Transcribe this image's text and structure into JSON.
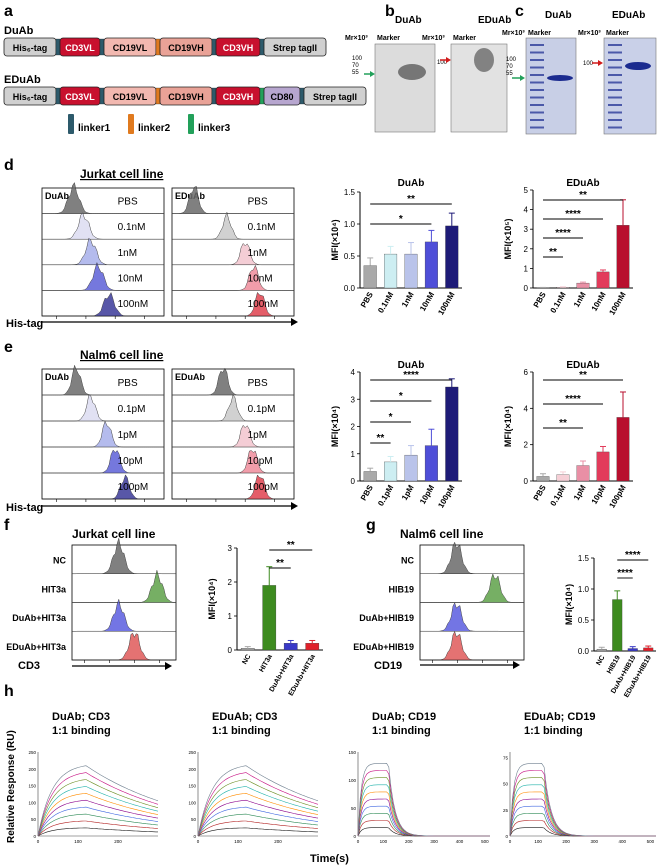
{
  "panels": {
    "a": "a",
    "b": "b",
    "c": "c",
    "d": "d",
    "e": "e",
    "f": "f",
    "g": "g",
    "h": "h"
  },
  "panel_a": {
    "duab_title": "DuAb",
    "eduab_title": "EDuAb",
    "duab_domains": [
      "His6-tag",
      "CD3VL",
      "CD19VL",
      "CD19VH",
      "CD3VH",
      "Strep tagII"
    ],
    "eduab_domains": [
      "His6-tag",
      "CD3VL",
      "CD19VL",
      "CD19VH",
      "CD3VH",
      "CD80",
      "Strep tagII"
    ],
    "linkers": [
      "linker1",
      "linker2",
      "linker3"
    ],
    "colors": {
      "grey": "#d0d0d0",
      "cd3": "#c8102e",
      "cd19vl": "#f2b8b0",
      "cd19vh": "#e9a297",
      "cd80": "#b7a6cf",
      "linker1": "#2d5a6b",
      "linker2": "#e07a1f",
      "linker3": "#22a05a"
    }
  },
  "panel_b": {
    "duab": "DuAb",
    "eduab": "EDuAb",
    "mr": "Mr×10³",
    "marker": "Marker",
    "ticks": [
      "100",
      "70",
      "55"
    ],
    "arrow_left": "55",
    "arrow_right": "100"
  },
  "panel_c": {
    "duab": "DuAb",
    "eduab": "EDuAb",
    "mr": "Mr×10³",
    "marker": "Marker",
    "ticks": [
      "100",
      "70",
      "55"
    ],
    "arrow_left": "55",
    "arrow_right": "100"
  },
  "panel_d": {
    "title": "Jurkat cell line",
    "duab_label": "DuAb",
    "eduab_label": "EDuAb",
    "duab_traces": [
      "PBS",
      "0.1nM",
      "1nM",
      "10nM",
      "100nM"
    ],
    "eduab_traces": [
      "PBS",
      "0.1nM",
      "1nM",
      "10nM",
      "100nM"
    ],
    "xaxis": "His-tag"
  },
  "panel_e": {
    "title": "Nalm6 cell line",
    "duab_label": "DuAb",
    "eduab_label": "EDuAb",
    "duab_traces": [
      "PBS",
      "0.1pM",
      "1pM",
      "10pM",
      "100pM"
    ],
    "eduab_traces": [
      "PBS",
      "0.1pM",
      "1pM",
      "10pM",
      "100pM"
    ],
    "xaxis": "His-tag"
  },
  "panel_f": {
    "title": "Jurkat cell line",
    "traces": [
      "NC",
      "HIT3a",
      "DuAb+HIT3a",
      "EDuAb+HIT3a"
    ],
    "xaxis": "CD3"
  },
  "panel_g": {
    "title": "Nalm6 cell line",
    "traces": [
      "NC",
      "HIB19",
      "DuAb+HIB19",
      "EDuAb+HIB19"
    ],
    "xaxis": "CD19"
  },
  "panel_h": {
    "ylabel": "Relative Response (RU)",
    "xlabel": "Time(s)",
    "titles": [
      [
        "DuAb; CD3",
        "1:1 binding"
      ],
      [
        "EDuAb; CD3",
        "1:1 binding"
      ],
      [
        "DuAb; CD19",
        "1:1 binding"
      ],
      [
        "EDuAb; CD19",
        "1:1 binding"
      ]
    ]
  },
  "chart_data": [
    {
      "id": "d-duab",
      "type": "bar",
      "title": "DuAb",
      "ylabel": "MFI(×10⁴)",
      "ylim": [
        0,
        1.5
      ],
      "yticks": [
        "0.0",
        "0.5",
        "1.0",
        "1.5"
      ],
      "categories": [
        "PBS",
        "0.1nM",
        "1nM",
        "10nM",
        "100nM"
      ],
      "values": [
        0.35,
        0.53,
        0.53,
        0.72,
        0.97
      ],
      "errors": [
        0.12,
        0.12,
        0.18,
        0.18,
        0.2
      ],
      "colors": [
        "#a9a9a9",
        "#cdeef2",
        "#b9c3ea",
        "#4e4ed8",
        "#1e1b78"
      ],
      "sig": [
        {
          "from": 0,
          "to": 3,
          "label": "*"
        },
        {
          "from": 0,
          "to": 4,
          "label": "**"
        }
      ]
    },
    {
      "id": "d-eduab",
      "type": "bar",
      "title": "EDuAb",
      "ylabel": "MFI(×10⁵)",
      "ylim": [
        0,
        5
      ],
      "yticks": [
        "0",
        "1",
        "2",
        "3",
        "4",
        "5"
      ],
      "categories": [
        "PBS",
        "0.1nM",
        "1nM",
        "10nM",
        "100nM"
      ],
      "values": [
        0.02,
        0.04,
        0.25,
        0.82,
        3.2
      ],
      "errors": [
        0.01,
        0.02,
        0.05,
        0.1,
        1.3
      ],
      "colors": [
        "#a9a9a9",
        "#f6cfd6",
        "#e98fa5",
        "#e23b5b",
        "#b80f2e"
      ],
      "sig": [
        {
          "from": 0,
          "to": 1,
          "label": "**"
        },
        {
          "from": 0,
          "to": 2,
          "label": "****"
        },
        {
          "from": 0,
          "to": 3,
          "label": "****"
        },
        {
          "from": 0,
          "to": 4,
          "label": "**"
        }
      ]
    },
    {
      "id": "e-duab",
      "type": "bar",
      "title": "DuAb",
      "ylabel": "MFI(×10⁴)",
      "ylim": [
        0,
        4
      ],
      "yticks": [
        "0",
        "1",
        "2",
        "3",
        "4"
      ],
      "categories": [
        "PBS",
        "0.1pM",
        "1pM",
        "10pM",
        "100pM"
      ],
      "values": [
        0.35,
        0.7,
        0.95,
        1.3,
        3.45
      ],
      "errors": [
        0.12,
        0.2,
        0.35,
        0.6,
        0.3
      ],
      "colors": [
        "#a9a9a9",
        "#cdeef2",
        "#b9c3ea",
        "#4e4ed8",
        "#1e1b78"
      ],
      "sig": [
        {
          "from": 0,
          "to": 1,
          "label": "**"
        },
        {
          "from": 0,
          "to": 2,
          "label": "*"
        },
        {
          "from": 0,
          "to": 3,
          "label": "*"
        },
        {
          "from": 0,
          "to": 4,
          "label": "****"
        }
      ]
    },
    {
      "id": "e-eduab",
      "type": "bar",
      "title": "EDuAb",
      "ylabel": "MFI(×10⁴)",
      "ylim": [
        0,
        6
      ],
      "yticks": [
        "0",
        "2",
        "4",
        "6"
      ],
      "categories": [
        "PBS",
        "0.1pM",
        "1pM",
        "10pM",
        "100pM"
      ],
      "values": [
        0.25,
        0.35,
        0.85,
        1.6,
        3.5
      ],
      "errors": [
        0.15,
        0.15,
        0.25,
        0.3,
        1.4
      ],
      "colors": [
        "#a9a9a9",
        "#f6cfd6",
        "#e98fa5",
        "#e23b5b",
        "#b80f2e"
      ],
      "sig": [
        {
          "from": 0,
          "to": 2,
          "label": "**"
        },
        {
          "from": 0,
          "to": 3,
          "label": "****"
        },
        {
          "from": 0,
          "to": 4,
          "label": "**"
        }
      ]
    },
    {
      "id": "f-bar",
      "type": "bar",
      "title": "",
      "ylabel": "MFI(×10⁴)",
      "ylim": [
        0,
        3
      ],
      "yticks": [
        "0",
        "1",
        "2",
        "3"
      ],
      "categories": [
        "NC",
        "HIT3a",
        "DuAb+HIT3a",
        "EDuAb+HIT3a"
      ],
      "values": [
        0.05,
        1.9,
        0.2,
        0.2
      ],
      "errors": [
        0.05,
        0.55,
        0.08,
        0.08
      ],
      "colors": [
        "#a9a9a9",
        "#3d8b1f",
        "#3939c8",
        "#e0202a"
      ],
      "sig": [
        {
          "from": 1,
          "to": 2,
          "label": "**"
        },
        {
          "from": 1,
          "to": 3,
          "label": "**"
        }
      ]
    },
    {
      "id": "g-bar",
      "type": "bar",
      "title": "",
      "ylabel": "MFI(×10⁴)",
      "ylim": [
        0,
        1.5
      ],
      "yticks": [
        "0.0",
        "0.5",
        "1.0",
        "1.5"
      ],
      "categories": [
        "NC",
        "HIB19",
        "DuAb+HIB19",
        "EDuAb+HIB19"
      ],
      "values": [
        0.03,
        0.83,
        0.04,
        0.05
      ],
      "errors": [
        0.03,
        0.14,
        0.03,
        0.03
      ],
      "colors": [
        "#a9a9a9",
        "#3d8b1f",
        "#3939c8",
        "#e0202a"
      ],
      "sig": [
        {
          "from": 1,
          "to": 2,
          "label": "****"
        },
        {
          "from": 1,
          "to": 3,
          "label": "****"
        }
      ]
    },
    {
      "id": "h-sensorgrams",
      "type": "line",
      "title": "1:1 binding",
      "xlabel": "Time(s)",
      "ylabel": "Relative Response (RU)",
      "plots": [
        {
          "name": "DuAb; CD3",
          "yticks": [
            "0",
            "50",
            "100",
            "150",
            "200",
            "250"
          ],
          "xticks": [
            "0",
            "100",
            "200"
          ],
          "ymax": 250,
          "xmax": 300
        },
        {
          "name": "EDuAb; CD3",
          "yticks": [
            "0",
            "50",
            "100",
            "150",
            "200",
            "250"
          ],
          "xticks": [
            "0",
            "100",
            "200"
          ],
          "ymax": 250,
          "xmax": 300
        },
        {
          "name": "DuAb; CD19",
          "yticks": [
            "0",
            "50",
            "100",
            "150"
          ],
          "xticks": [
            "0",
            "100",
            "200",
            "300",
            "400",
            "500"
          ],
          "ymax": 150,
          "xmax": 520
        },
        {
          "name": "EDuAb; CD19",
          "yticks": [
            "0",
            "25",
            "50",
            "75"
          ],
          "xticks": [
            "0",
            "100",
            "200",
            "300",
            "400",
            "500"
          ],
          "ymax": 80,
          "xmax": 520
        }
      ]
    }
  ]
}
